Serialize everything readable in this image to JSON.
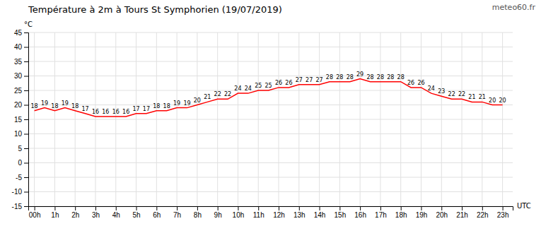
{
  "chart_data": {
    "type": "line",
    "title": "Température à 2m à Tours St Symphorien (19/07/2019)",
    "ylabel": "°C",
    "xlabel": "UTC",
    "annotations": [
      "meteo60.fr"
    ],
    "x": [
      0,
      0.5,
      1,
      1.5,
      2,
      2.5,
      3,
      3.5,
      4,
      4.5,
      5,
      5.5,
      6,
      6.5,
      7,
      7.5,
      8,
      8.5,
      9,
      9.5,
      10,
      10.5,
      11,
      11.5,
      12,
      12.5,
      13,
      13.5,
      14,
      14.5,
      15,
      15.5,
      16,
      16.5,
      17,
      17.5,
      18,
      18.5,
      19,
      19.5,
      20,
      20.5,
      21,
      21.5,
      22,
      22.5,
      23
    ],
    "values": [
      18,
      19,
      18,
      19,
      18,
      17,
      16,
      16,
      16,
      16,
      17,
      17,
      18,
      18,
      19,
      19,
      20,
      21,
      22,
      22,
      24,
      24,
      25,
      25,
      26,
      26,
      27,
      27,
      27,
      28,
      28,
      28,
      29,
      28,
      28,
      28,
      28,
      26,
      26,
      24,
      23,
      22,
      22,
      21,
      21,
      20,
      20
    ],
    "color": "#ff0000",
    "data_labels": true,
    "grid": true,
    "xlim": [
      -0.3,
      23.5
    ],
    "xticks": [
      {
        "value": 0,
        "label": "00h"
      },
      {
        "value": 1,
        "label": "1h"
      },
      {
        "value": 2,
        "label": "2h"
      },
      {
        "value": 3,
        "label": "3h"
      },
      {
        "value": 4,
        "label": "4h"
      },
      {
        "value": 5,
        "label": "5h"
      },
      {
        "value": 6,
        "label": "6h"
      },
      {
        "value": 7,
        "label": "7h"
      },
      {
        "value": 8,
        "label": "8h"
      },
      {
        "value": 9,
        "label": "9h"
      },
      {
        "value": 10,
        "label": "10h"
      },
      {
        "value": 11,
        "label": "11h"
      },
      {
        "value": 12,
        "label": "12h"
      },
      {
        "value": 13,
        "label": "13h"
      },
      {
        "value": 14,
        "label": "14h"
      },
      {
        "value": 15,
        "label": "15h"
      },
      {
        "value": 16,
        "label": "16h"
      },
      {
        "value": 17,
        "label": "17h"
      },
      {
        "value": 18,
        "label": "18h"
      },
      {
        "value": 19,
        "label": "19h"
      },
      {
        "value": 20,
        "label": "20h"
      },
      {
        "value": 21,
        "label": "21h"
      },
      {
        "value": 22,
        "label": "22h"
      },
      {
        "value": 23,
        "label": "23h"
      }
    ],
    "ylim": [
      -15,
      45
    ],
    "yticks": [
      -15,
      -10,
      -5,
      0,
      5,
      10,
      15,
      20,
      25,
      30,
      35,
      40,
      45
    ]
  }
}
